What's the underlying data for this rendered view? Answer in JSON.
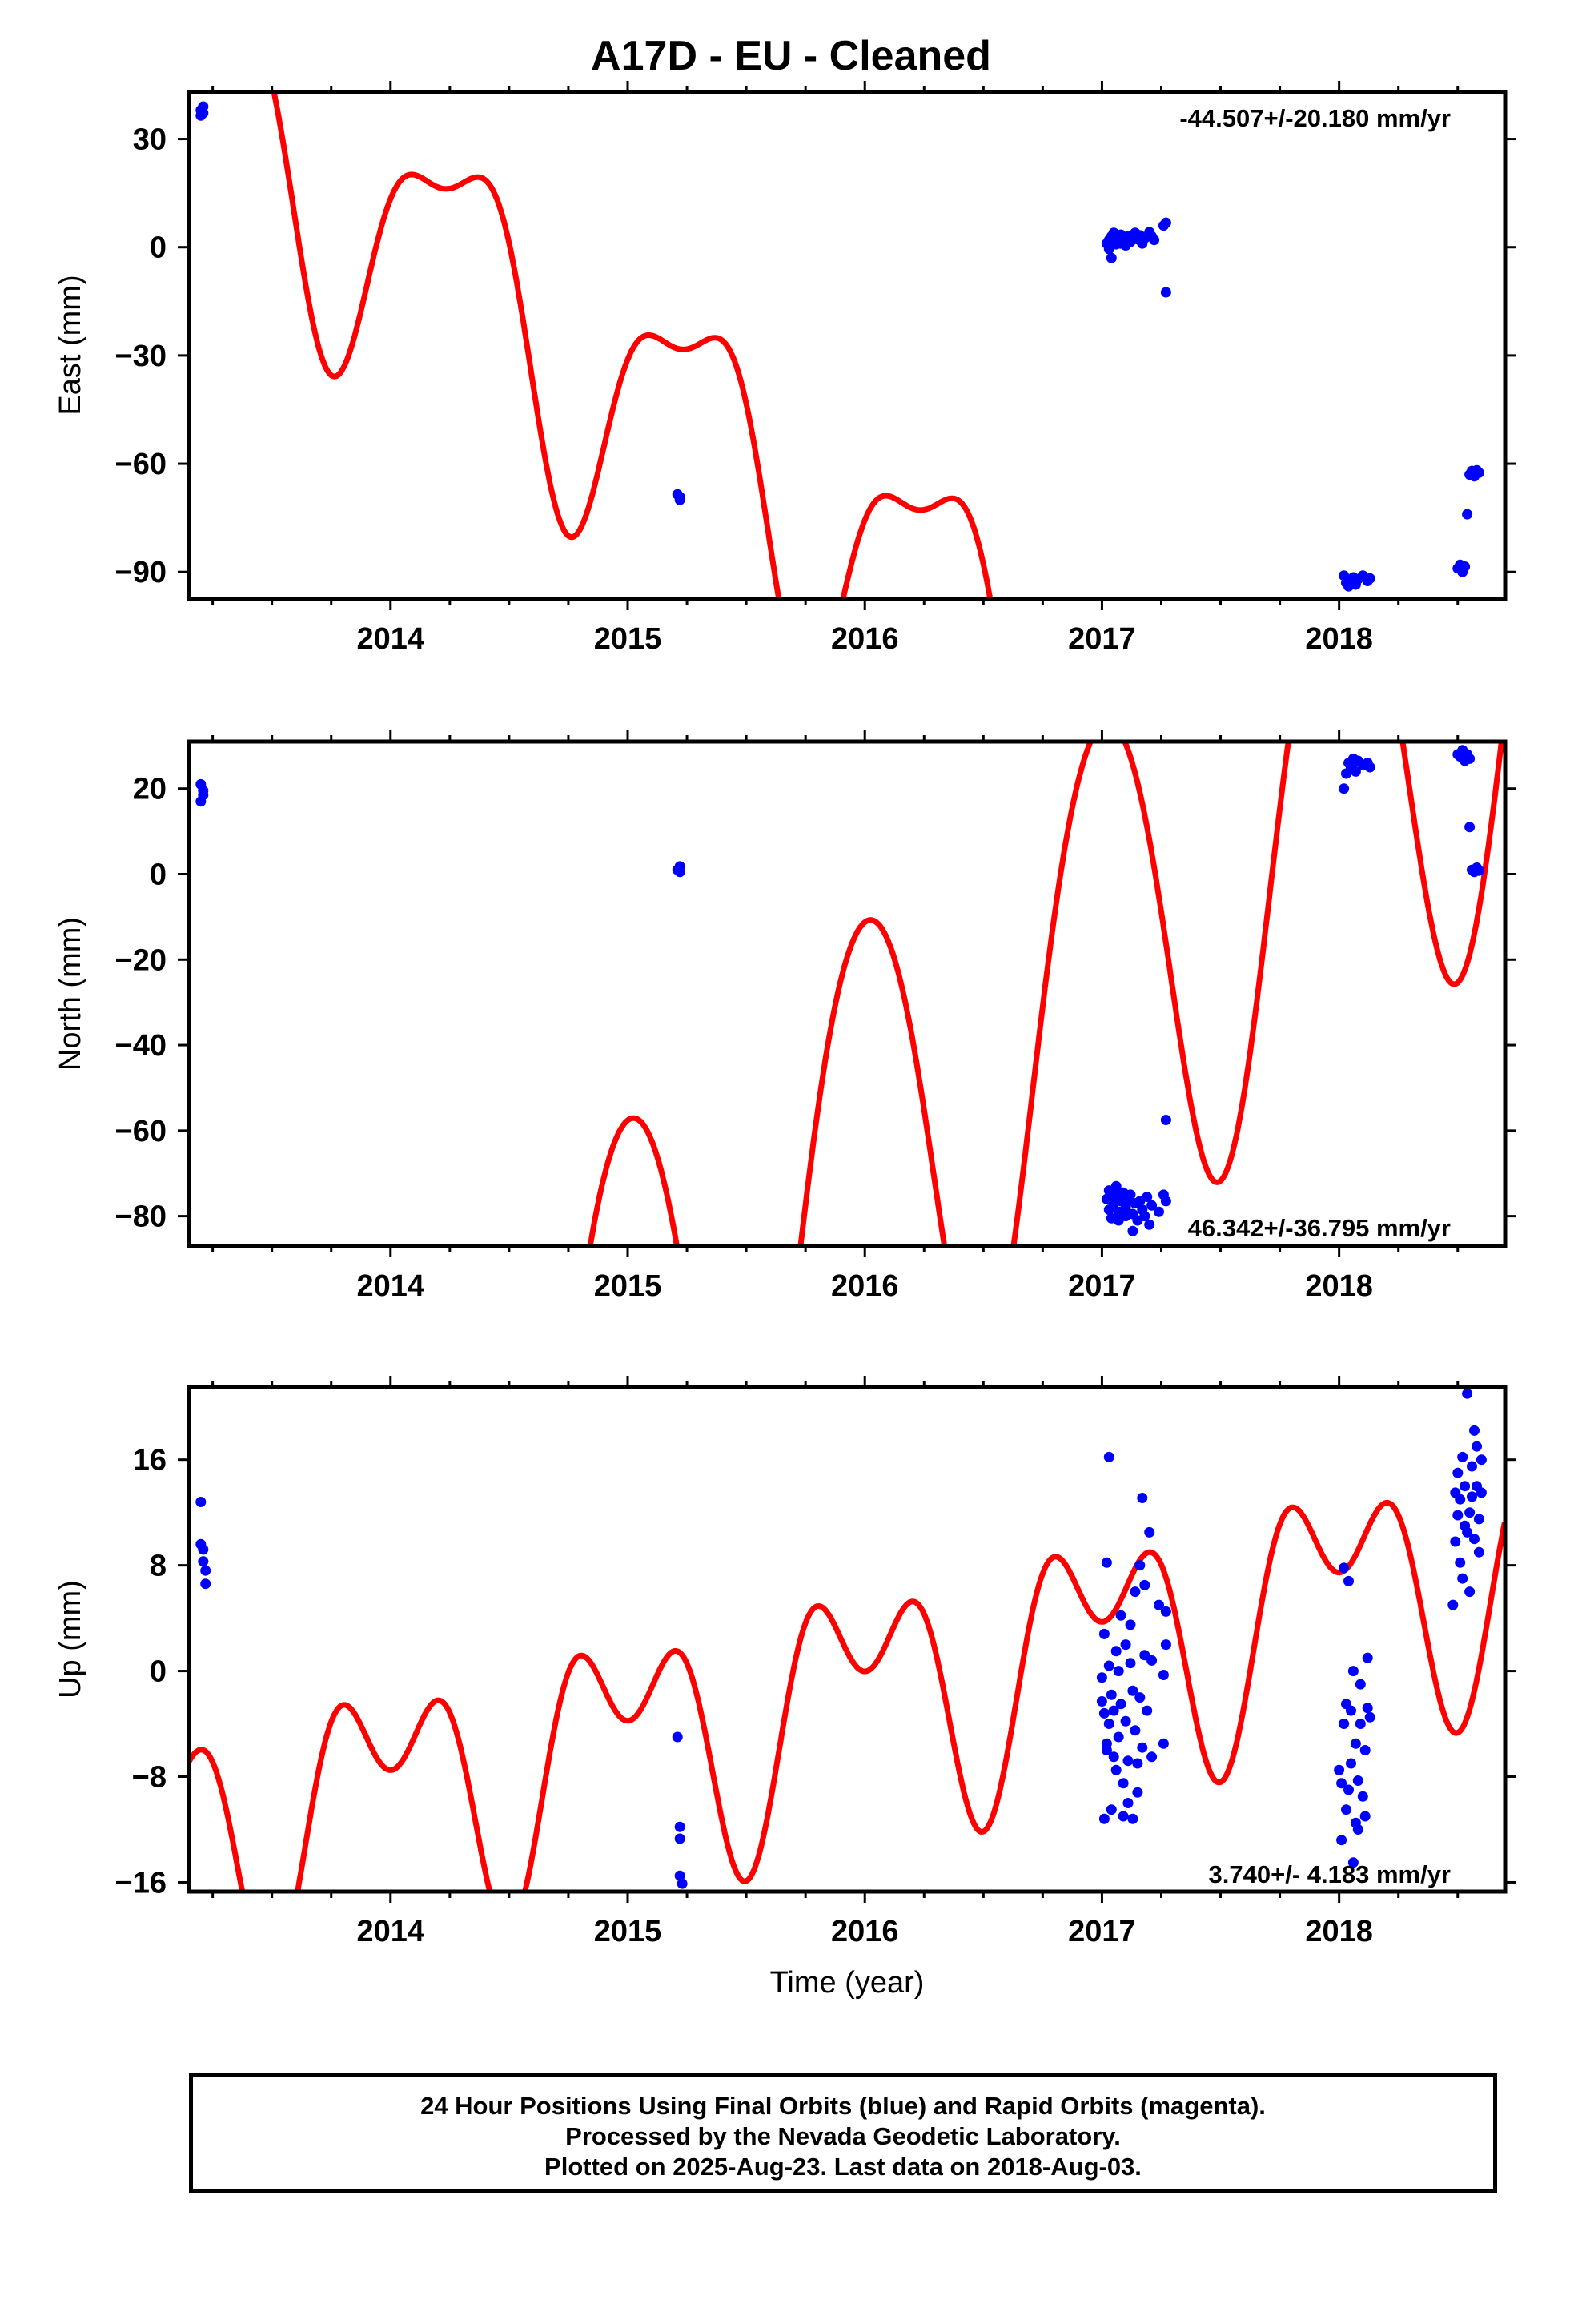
{
  "title": "A17D  - EU - Cleaned",
  "colors": {
    "fit": "#ff0000",
    "final_orbits": "#0000ff",
    "frame": "#000000"
  },
  "footer": {
    "line1": "24 Hour Positions Using Final Orbits (blue) and Rapid Orbits (magenta).",
    "line2": "Processed by the Nevada Geodetic Laboratory.",
    "line3": "Plotted on 2025-Aug-23. Last data on 2018-Aug-03."
  },
  "chart_data": [
    {
      "type": "scatter",
      "ylabel": "East (mm)",
      "xlabel": "",
      "rate_label": "-44.507+/-20.180 mm/yr",
      "xlim": [
        2013.15,
        2018.7
      ],
      "ylim": [
        -97.5,
        43
      ],
      "x_ticks": [
        "2014",
        "2015",
        "2016",
        "2017",
        "2018"
      ],
      "y_ticks": [
        30,
        0,
        -30,
        -60,
        -90
      ],
      "y_tick_labels": [
        "30",
        "0",
        "−30",
        "−60",
        "−90"
      ],
      "fit_model": {
        "a0": 40.0,
        "rate": -44.507,
        "t0": 2013.2,
        "sin1": 37.0,
        "cos1": -5.0,
        "sin2": -2.0,
        "cos2": 14.0
      },
      "points": [
        [
          2013.2,
          36.5
        ],
        [
          2013.2,
          38.0
        ],
        [
          2013.21,
          37.2
        ],
        [
          2013.21,
          39.0
        ],
        [
          2015.21,
          -68.5
        ],
        [
          2015.22,
          -70.0
        ],
        [
          2015.22,
          -69.2
        ],
        [
          2017.02,
          1.0
        ],
        [
          2017.03,
          -0.5
        ],
        [
          2017.03,
          2.0
        ],
        [
          2017.04,
          3.0
        ],
        [
          2017.04,
          -3.0
        ],
        [
          2017.05,
          1.5
        ],
        [
          2017.05,
          4.0
        ],
        [
          2017.06,
          0.8
        ],
        [
          2017.07,
          2.5
        ],
        [
          2017.08,
          1.0
        ],
        [
          2017.08,
          3.5
        ],
        [
          2017.09,
          2.0
        ],
        [
          2017.1,
          0.5
        ],
        [
          2017.11,
          3.0
        ],
        [
          2017.12,
          1.5
        ],
        [
          2017.13,
          2.8
        ],
        [
          2017.14,
          4.0
        ],
        [
          2017.15,
          2.2
        ],
        [
          2017.16,
          3.3
        ],
        [
          2017.17,
          1.0
        ],
        [
          2017.18,
          2.5
        ],
        [
          2017.2,
          4.2
        ],
        [
          2017.21,
          3.0
        ],
        [
          2017.22,
          2.0
        ],
        [
          2017.26,
          6.0
        ],
        [
          2017.27,
          6.8
        ],
        [
          2017.27,
          -12.5
        ],
        [
          2018.02,
          -91.0
        ],
        [
          2018.03,
          -93.0
        ],
        [
          2018.04,
          -94.0
        ],
        [
          2018.05,
          -92.5
        ],
        [
          2018.06,
          -91.5
        ],
        [
          2018.07,
          -93.5
        ],
        [
          2018.08,
          -92.0
        ],
        [
          2018.1,
          -91.0
        ],
        [
          2018.12,
          -92.5
        ],
        [
          2018.13,
          -91.8
        ],
        [
          2018.5,
          -89.0
        ],
        [
          2018.51,
          -88.0
        ],
        [
          2018.52,
          -90.0
        ],
        [
          2018.53,
          -88.5
        ],
        [
          2018.54,
          -74.0
        ],
        [
          2018.55,
          -63.0
        ],
        [
          2018.56,
          -62.0
        ],
        [
          2018.57,
          -63.5
        ],
        [
          2018.58,
          -61.8
        ],
        [
          2018.59,
          -62.5
        ]
      ]
    },
    {
      "type": "scatter",
      "ylabel": "North (mm)",
      "xlabel": "",
      "rate_label": "46.342+/-36.795 mm/yr",
      "xlim": [
        2013.15,
        2018.7
      ],
      "ylim": [
        -87,
        31
      ],
      "x_ticks": [
        "2014",
        "2015",
        "2016",
        "2017",
        "2018"
      ],
      "y_ticks": [
        20,
        0,
        -20,
        -40,
        -60,
        -80
      ],
      "y_tick_labels": [
        "20",
        "0",
        "−20",
        "−40",
        "−60",
        "−80"
      ],
      "fit_model": {
        "a0": -201.0,
        "rate": 46.342,
        "t0": 2013.2,
        "sin1": -0.5,
        "cos1": 65.0,
        "sin2": 0.0,
        "cos2": -5.0
      },
      "points": [
        [
          2013.2,
          17.0
        ],
        [
          2013.2,
          21.0
        ],
        [
          2013.21,
          19.5
        ],
        [
          2013.21,
          18.5
        ],
        [
          2015.21,
          1.0
        ],
        [
          2015.22,
          0.5
        ],
        [
          2015.22,
          1.8
        ],
        [
          2017.02,
          -76.0
        ],
        [
          2017.03,
          -74.0
        ],
        [
          2017.03,
          -78.5
        ],
        [
          2017.04,
          -80.5
        ],
        [
          2017.05,
          -75.0
        ],
        [
          2017.05,
          -77.0
        ],
        [
          2017.06,
          -73.0
        ],
        [
          2017.07,
          -79.0
        ],
        [
          2017.07,
          -81.0
        ],
        [
          2017.08,
          -76.5
        ],
        [
          2017.09,
          -74.5
        ],
        [
          2017.1,
          -78.0
        ],
        [
          2017.1,
          -80.0
        ],
        [
          2017.11,
          -76.0
        ],
        [
          2017.12,
          -75.0
        ],
        [
          2017.13,
          -79.5
        ],
        [
          2017.13,
          -83.5
        ],
        [
          2017.14,
          -77.0
        ],
        [
          2017.15,
          -81.0
        ],
        [
          2017.16,
          -76.5
        ],
        [
          2017.17,
          -78.5
        ],
        [
          2017.18,
          -80.0
        ],
        [
          2017.19,
          -75.5
        ],
        [
          2017.2,
          -82.0
        ],
        [
          2017.21,
          -77.5
        ],
        [
          2017.24,
          -79.0
        ],
        [
          2017.26,
          -75.0
        ],
        [
          2017.27,
          -76.5
        ],
        [
          2017.27,
          -57.5
        ],
        [
          2018.02,
          20.0
        ],
        [
          2018.03,
          23.5
        ],
        [
          2018.04,
          26.0
        ],
        [
          2018.05,
          25.0
        ],
        [
          2018.06,
          27.0
        ],
        [
          2018.07,
          24.0
        ],
        [
          2018.08,
          26.5
        ],
        [
          2018.1,
          25.5
        ],
        [
          2018.12,
          26.0
        ],
        [
          2018.13,
          25.0
        ],
        [
          2018.5,
          28.0
        ],
        [
          2018.51,
          27.5
        ],
        [
          2018.52,
          29.0
        ],
        [
          2018.53,
          26.5
        ],
        [
          2018.54,
          28.0
        ],
        [
          2018.55,
          27.0
        ],
        [
          2018.55,
          11.0
        ],
        [
          2018.56,
          1.0
        ],
        [
          2018.57,
          0.5
        ],
        [
          2018.58,
          1.5
        ],
        [
          2018.59,
          0.8
        ]
      ]
    },
    {
      "type": "scatter",
      "ylabel": "Up (mm)",
      "xlabel": "Time (year)",
      "rate_label": "3.740+/- 4.183 mm/yr",
      "xlim": [
        2013.15,
        2018.7
      ],
      "ylim": [
        -16.7,
        21.5
      ],
      "x_ticks": [
        "2014",
        "2015",
        "2016",
        "2017",
        "2018"
      ],
      "y_ticks": [
        16,
        8,
        0,
        -8,
        -16
      ],
      "y_tick_labels": [
        "16",
        "8",
        "0",
        "−8",
        "−16"
      ],
      "fit_model": {
        "a0": -12.0,
        "rate": 3.74,
        "t0": 2013.2,
        "sin1": -0.6,
        "cos1": 7.0,
        "sin2": 0.0,
        "cos2": -5.5
      },
      "points": [
        [
          2013.2,
          12.8
        ],
        [
          2013.2,
          9.6
        ],
        [
          2013.21,
          9.2
        ],
        [
          2013.21,
          8.3
        ],
        [
          2013.22,
          7.6
        ],
        [
          2013.22,
          6.6
        ],
        [
          2015.21,
          -5.0
        ],
        [
          2015.22,
          -11.8
        ],
        [
          2015.22,
          -12.7
        ],
        [
          2015.22,
          -15.5
        ],
        [
          2015.23,
          -16.1
        ],
        [
          2017.0,
          -0.5
        ],
        [
          2017.0,
          -2.3
        ],
        [
          2017.01,
          -11.2
        ],
        [
          2017.01,
          -3.2
        ],
        [
          2017.01,
          2.8
        ],
        [
          2017.02,
          -5.5
        ],
        [
          2017.02,
          8.2
        ],
        [
          2017.02,
          -6.0
        ],
        [
          2017.03,
          16.2
        ],
        [
          2017.03,
          -4.0
        ],
        [
          2017.03,
          0.4
        ],
        [
          2017.04,
          -1.8
        ],
        [
          2017.04,
          -10.5
        ],
        [
          2017.05,
          -6.5
        ],
        [
          2017.05,
          -3.0
        ],
        [
          2017.06,
          1.5
        ],
        [
          2017.06,
          -7.5
        ],
        [
          2017.07,
          -5.0
        ],
        [
          2017.07,
          0.0
        ],
        [
          2017.08,
          -2.5
        ],
        [
          2017.08,
          4.2
        ],
        [
          2017.09,
          -8.5
        ],
        [
          2017.09,
          -11.0
        ],
        [
          2017.1,
          -3.8
        ],
        [
          2017.1,
          2.0
        ],
        [
          2017.11,
          -6.8
        ],
        [
          2017.11,
          -10.0
        ],
        [
          2017.12,
          0.6
        ],
        [
          2017.12,
          3.5
        ],
        [
          2017.13,
          -1.5
        ],
        [
          2017.13,
          -11.2
        ],
        [
          2017.14,
          -4.5
        ],
        [
          2017.14,
          6.0
        ],
        [
          2017.15,
          -9.2
        ],
        [
          2017.15,
          -7.0
        ],
        [
          2017.16,
          -2.0
        ],
        [
          2017.16,
          8.0
        ],
        [
          2017.17,
          13.1
        ],
        [
          2017.17,
          -5.8
        ],
        [
          2017.18,
          1.2
        ],
        [
          2017.18,
          6.5
        ],
        [
          2017.19,
          -3.0
        ],
        [
          2017.2,
          10.5
        ],
        [
          2017.21,
          -6.5
        ],
        [
          2017.21,
          0.8
        ],
        [
          2017.24,
          5.0
        ],
        [
          2017.26,
          -5.5
        ],
        [
          2017.26,
          -0.3
        ],
        [
          2017.27,
          4.5
        ],
        [
          2017.27,
          2.0
        ],
        [
          2018.0,
          -7.5
        ],
        [
          2018.01,
          -12.8
        ],
        [
          2018.01,
          -8.5
        ],
        [
          2018.02,
          7.8
        ],
        [
          2018.02,
          -4.0
        ],
        [
          2018.03,
          -2.5
        ],
        [
          2018.03,
          -10.5
        ],
        [
          2018.04,
          -9.0
        ],
        [
          2018.04,
          6.8
        ],
        [
          2018.05,
          -3.0
        ],
        [
          2018.05,
          -7.0
        ],
        [
          2018.06,
          0.0
        ],
        [
          2018.06,
          -14.5
        ],
        [
          2018.07,
          -11.5
        ],
        [
          2018.07,
          -5.5
        ],
        [
          2018.08,
          -12.0
        ],
        [
          2018.08,
          -8.3
        ],
        [
          2018.09,
          -1.0
        ],
        [
          2018.09,
          -4.0
        ],
        [
          2018.1,
          -9.5
        ],
        [
          2018.11,
          -6.0
        ],
        [
          2018.11,
          -11.0
        ],
        [
          2018.12,
          -2.8
        ],
        [
          2018.12,
          1.0
        ],
        [
          2018.13,
          -3.5
        ],
        [
          2018.48,
          5.0
        ],
        [
          2018.49,
          13.5
        ],
        [
          2018.49,
          9.8
        ],
        [
          2018.5,
          11.8
        ],
        [
          2018.5,
          15.0
        ],
        [
          2018.51,
          8.2
        ],
        [
          2018.51,
          13.0
        ],
        [
          2018.52,
          7.0
        ],
        [
          2018.52,
          16.2
        ],
        [
          2018.53,
          11.0
        ],
        [
          2018.53,
          14.0
        ],
        [
          2018.54,
          21.0
        ],
        [
          2018.54,
          10.5
        ],
        [
          2018.55,
          12.0
        ],
        [
          2018.55,
          6.0
        ],
        [
          2018.56,
          15.5
        ],
        [
          2018.56,
          13.2
        ],
        [
          2018.57,
          18.2
        ],
        [
          2018.57,
          10.0
        ],
        [
          2018.58,
          17.0
        ],
        [
          2018.58,
          14.0
        ],
        [
          2018.59,
          9.0
        ],
        [
          2018.59,
          11.5
        ],
        [
          2018.6,
          16.0
        ],
        [
          2018.6,
          13.5
        ]
      ]
    }
  ]
}
